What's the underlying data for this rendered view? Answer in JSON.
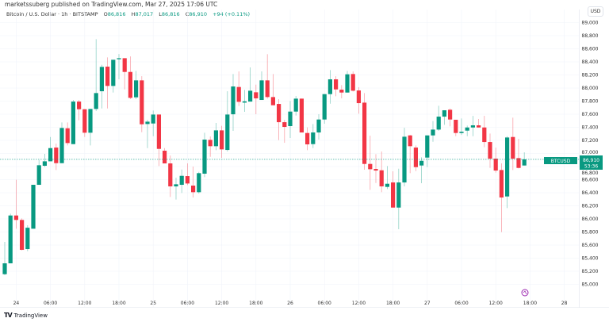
{
  "header": {
    "published": "marketssuberg published on TradingView.com, Mar 27, 2025 17:06 UTC",
    "symbol": "Bitcoin / U.S. Dollar · 1h · BITSTAMP",
    "o_label": "O",
    "o": "86,816",
    "h_label": "H",
    "h": "87,017",
    "l_label": "L",
    "l": "86,816",
    "c_label": "C",
    "c": "86,910",
    "change": "+94 (+0.11%)"
  },
  "currency": "USD",
  "ticker_label": "BTCUSD",
  "last_price": "86,910",
  "countdown": "53:36",
  "footer": {
    "brand": "TradingView",
    "brand_mark": "TV"
  },
  "colors": {
    "up": "#089981",
    "down": "#F23645",
    "grid": "#f0f3fa"
  },
  "chart_data": {
    "type": "candlestick",
    "title": "Bitcoin / U.S. Dollar · 1h · BITSTAMP",
    "interval": "1h",
    "first_candle": "Mar 23 22:00",
    "ylim": [
      84900,
      89100
    ],
    "yticks": [
      85000,
      85200,
      85400,
      85600,
      85800,
      86000,
      86200,
      86400,
      86600,
      86800,
      87000,
      87200,
      87400,
      87600,
      87800,
      88000,
      88200,
      88400,
      88600,
      88800,
      89000
    ],
    "xticks": [
      "24",
      "06:00",
      "12:00",
      "18:00",
      "25",
      "06:00",
      "12:00",
      "18:00",
      "26",
      "06:00",
      "12:00",
      "18:00",
      "27",
      "06:00",
      "12:00",
      "18:00",
      "28"
    ],
    "last_price": 86910,
    "ohlc": [
      [
        85155,
        85648,
        85140,
        85321
      ],
      [
        85321,
        86080,
        85321,
        86052
      ],
      [
        86052,
        86598,
        85850,
        85984
      ],
      [
        85984,
        86008,
        85519,
        85527
      ],
      [
        85539,
        85903,
        85507,
        85865
      ],
      [
        85850,
        86521,
        85850,
        86521
      ],
      [
        86521,
        86900,
        86521,
        86820
      ],
      [
        86812,
        86994,
        86792,
        86880
      ],
      [
        86880,
        87252,
        86880,
        87082
      ],
      [
        87090,
        87151,
        86747,
        86852
      ],
      [
        86852,
        87474,
        86852,
        87390
      ],
      [
        87385,
        87474,
        87123,
        87159
      ],
      [
        87143,
        87818,
        87143,
        87793
      ],
      [
        87793,
        87818,
        87507,
        87676
      ],
      [
        87676,
        87676,
        87252,
        87317
      ],
      [
        87317,
        87680,
        87123,
        87680
      ],
      [
        87680,
        88747,
        87648,
        87923
      ],
      [
        87951,
        88355,
        87688,
        88323
      ],
      [
        88327,
        88468,
        87688,
        88032
      ],
      [
        88032,
        88432,
        87931,
        88432
      ],
      [
        88440,
        88520,
        88133,
        88456
      ],
      [
        88456,
        88456,
        87979,
        88246
      ],
      [
        88246,
        88484,
        87830,
        87850
      ],
      [
        87858,
        88262,
        87830,
        88117
      ],
      [
        88117,
        88181,
        87325,
        87446
      ],
      [
        87450,
        87515,
        87082,
        87486
      ],
      [
        87458,
        87656,
        87264,
        87595
      ],
      [
        87595,
        87595,
        86808,
        87070
      ],
      [
        87042,
        87082,
        86848,
        86848
      ],
      [
        86848,
        86969,
        86335,
        86497
      ],
      [
        86497,
        86630,
        86295,
        86529
      ],
      [
        86521,
        86755,
        86396,
        86658
      ],
      [
        86654,
        86848,
        86517,
        86541
      ],
      [
        86509,
        86800,
        86327,
        86408
      ],
      [
        86408,
        86719,
        86388,
        86699
      ],
      [
        86691,
        87317,
        86638,
        87212
      ],
      [
        87208,
        87260,
        86949,
        87111
      ],
      [
        87111,
        87466,
        87050,
        87353
      ],
      [
        87353,
        87422,
        86933,
        87062
      ],
      [
        87054,
        87951,
        87030,
        87595
      ],
      [
        87599,
        88214,
        87345,
        88024
      ],
      [
        88016,
        88254,
        87725,
        87789
      ],
      [
        87777,
        87971,
        87636,
        87797
      ],
      [
        87793,
        88315,
        87793,
        87959
      ],
      [
        87935,
        88052,
        87600,
        87842
      ],
      [
        87818,
        88254,
        87818,
        88117
      ],
      [
        88117,
        88517,
        87838,
        87862
      ],
      [
        87862,
        88214,
        87737,
        87737
      ],
      [
        87757,
        87830,
        87204,
        87478
      ],
      [
        87478,
        87515,
        87163,
        87406
      ],
      [
        87418,
        87801,
        87236,
        87640
      ],
      [
        87640,
        87878,
        87579,
        87838
      ],
      [
        87838,
        87838,
        87321,
        87321
      ],
      [
        87313,
        87398,
        87050,
        87139
      ],
      [
        87143,
        87450,
        87082,
        87321
      ],
      [
        87321,
        87600,
        87212,
        87519
      ],
      [
        87519,
        87907,
        87454,
        87907
      ],
      [
        87907,
        88274,
        87761,
        88133
      ],
      [
        88133,
        88181,
        87874,
        87979
      ],
      [
        87975,
        88044,
        87842,
        87931
      ],
      [
        87931,
        88262,
        87931,
        88210
      ],
      [
        88214,
        88254,
        87947,
        87959
      ],
      [
        87963,
        88012,
        87608,
        87769
      ],
      [
        87777,
        87923,
        86751,
        86840
      ],
      [
        86840,
        87272,
        86444,
        86759
      ],
      [
        86763,
        86989,
        86549,
        86739
      ],
      [
        86743,
        87030,
        86408,
        86497
      ],
      [
        86489,
        86808,
        86456,
        86537
      ],
      [
        86557,
        86727,
        86173,
        86173
      ],
      [
        86173,
        86767,
        85842,
        86557
      ],
      [
        86557,
        87393,
        86497,
        87256
      ],
      [
        87276,
        87284,
        86699,
        87111
      ],
      [
        87090,
        87123,
        86731,
        86791
      ],
      [
        86816,
        86941,
        86545,
        86888
      ],
      [
        86937,
        87276,
        86792,
        87276
      ],
      [
        87276,
        87495,
        87179,
        87365
      ],
      [
        87365,
        87729,
        87345,
        87563
      ],
      [
        87563,
        87660,
        87438,
        87660
      ],
      [
        87668,
        87688,
        87414,
        87519
      ],
      [
        87515,
        87515,
        87264,
        87313
      ],
      [
        87313,
        87535,
        87284,
        87333
      ],
      [
        87349,
        87426,
        87264,
        87397
      ],
      [
        87397,
        87575,
        87264,
        87430
      ],
      [
        87430,
        87527,
        87397,
        87397
      ],
      [
        87397,
        87575,
        87095,
        87175
      ],
      [
        87175,
        87305,
        86779,
        86921
      ],
      [
        86921,
        87090,
        86707,
        86739
      ],
      [
        86747,
        86848,
        85798,
        86327
      ],
      [
        86343,
        87264,
        86165,
        87244
      ],
      [
        87252,
        87547,
        86747,
        86921
      ],
      [
        86929,
        87224,
        86771,
        86779
      ],
      [
        86816,
        87017,
        86816,
        86910
      ]
    ]
  }
}
